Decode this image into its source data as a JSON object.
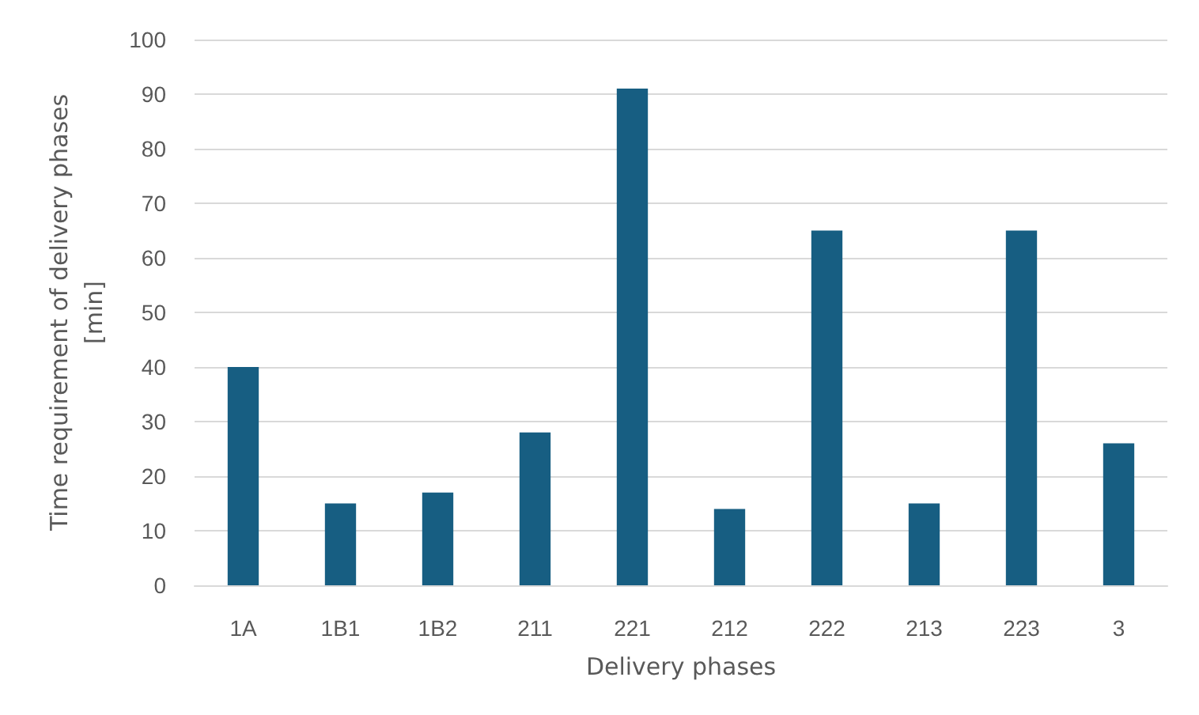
{
  "chart_data": {
    "type": "bar",
    "xlabel": "Delivery phases",
    "ylabel": "Time requirement of delivery phases\n[min]",
    "categories": [
      "1A",
      "1B1",
      "1B2",
      "211",
      "221",
      "212",
      "222",
      "213",
      "223",
      "3"
    ],
    "values": [
      40,
      15,
      17,
      28,
      91,
      14,
      65,
      15,
      65,
      26
    ],
    "color": "#175e82",
    "ylim": [
      0,
      100
    ],
    "yticks": [
      0,
      10,
      20,
      30,
      40,
      50,
      60,
      70,
      80,
      90,
      100
    ],
    "grid": "y"
  }
}
